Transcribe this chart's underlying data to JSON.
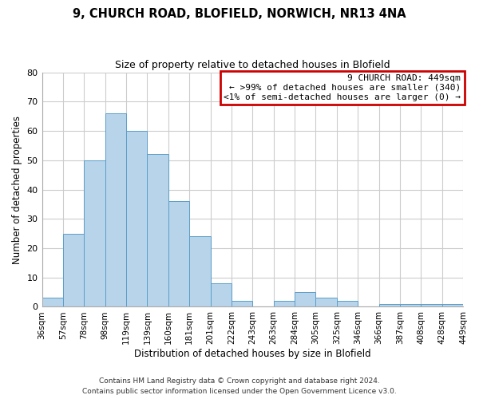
{
  "title": "9, CHURCH ROAD, BLOFIELD, NORWICH, NR13 4NA",
  "subtitle": "Size of property relative to detached houses in Blofield",
  "xlabel": "Distribution of detached houses by size in Blofield",
  "ylabel": "Number of detached properties",
  "bar_values": [
    3,
    25,
    50,
    66,
    60,
    52,
    36,
    24,
    8,
    2,
    0,
    2,
    5,
    3,
    2,
    0,
    1,
    1,
    1,
    1
  ],
  "tick_labels": [
    "36sqm",
    "57sqm",
    "78sqm",
    "98sqm",
    "119sqm",
    "139sqm",
    "160sqm",
    "181sqm",
    "201sqm",
    "222sqm",
    "243sqm",
    "263sqm",
    "284sqm",
    "305sqm",
    "325sqm",
    "346sqm",
    "366sqm",
    "387sqm",
    "408sqm",
    "428sqm",
    "449sqm"
  ],
  "bar_color": "#b8d4ea",
  "bar_edge_color": "#5a9ec8",
  "ylim": [
    0,
    80
  ],
  "yticks": [
    0,
    10,
    20,
    30,
    40,
    50,
    60,
    70,
    80
  ],
  "legend_title": "9 CHURCH ROAD: 449sqm",
  "legend_line1": "← >99% of detached houses are smaller (340)",
  "legend_line2": "<1% of semi-detached houses are larger (0) →",
  "legend_box_color": "#ffffff",
  "legend_box_edge": "#cc0000",
  "footer_line1": "Contains HM Land Registry data © Crown copyright and database right 2024.",
  "footer_line2": "Contains public sector information licensed under the Open Government Licence v3.0.",
  "background_color": "#ffffff",
  "grid_color": "#cccccc"
}
